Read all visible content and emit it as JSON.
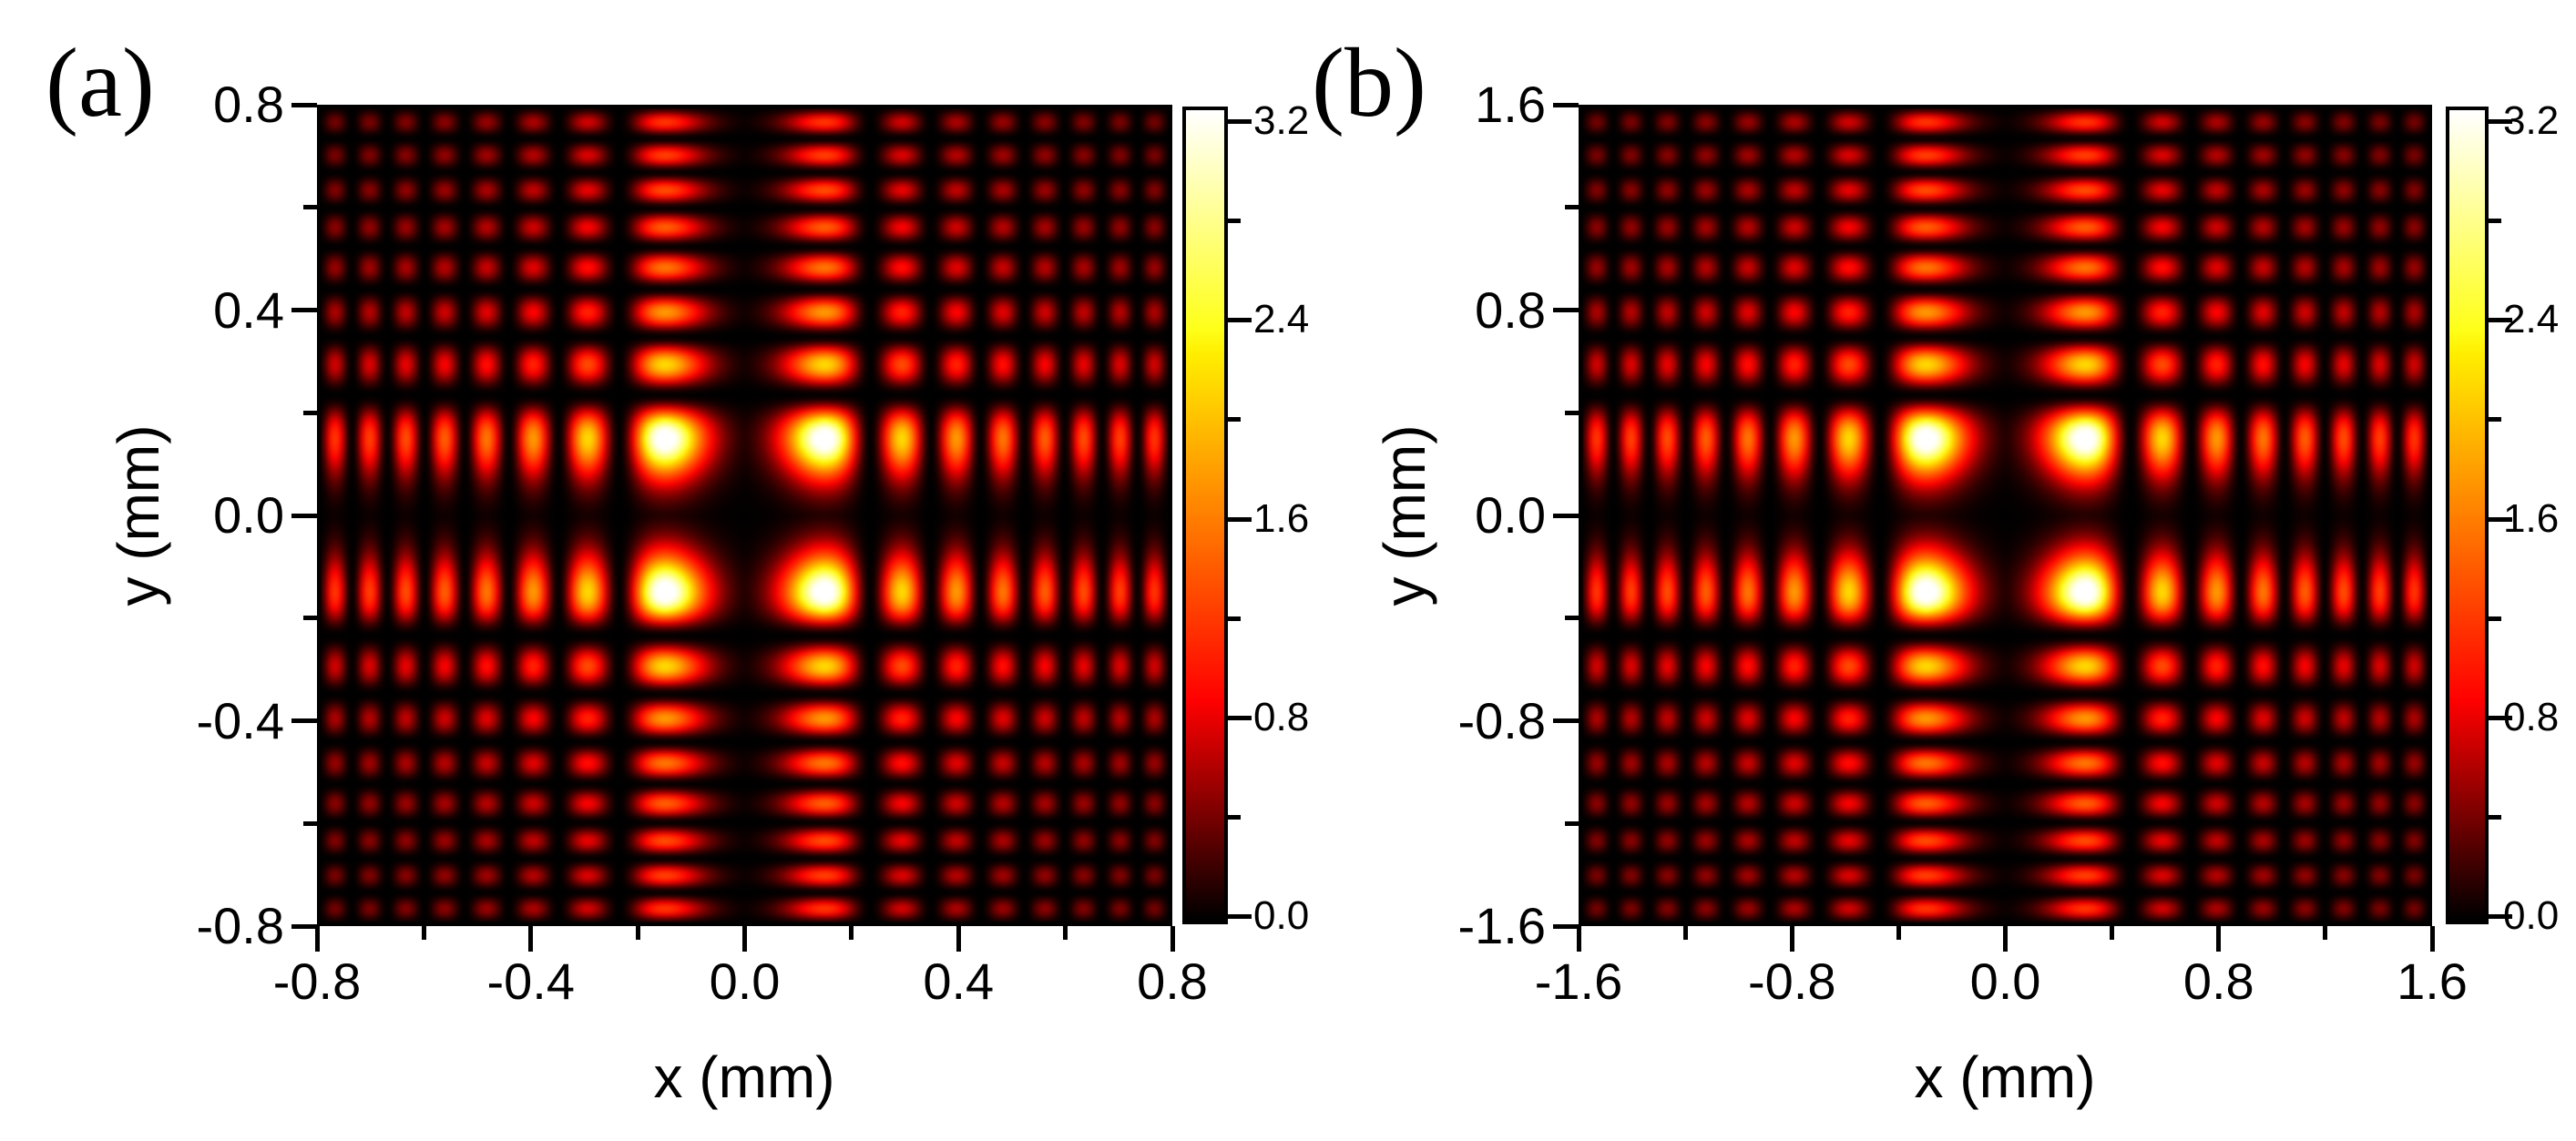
{
  "figure": {
    "background": "#ffffff",
    "axis_color": "#000000"
  },
  "panels": [
    {
      "id": "a",
      "label": "(a)",
      "x_title": "x (mm)",
      "y_title": "y (mm)",
      "x_tick_labels": [
        "-0.8",
        "-0.4",
        "0.0",
        "0.4",
        "0.8"
      ],
      "y_tick_labels": [
        "0.8",
        "0.4",
        "0.0",
        "-0.4",
        "-0.8"
      ],
      "colorbar_tick_labels": [
        "0.0",
        "0.8",
        "1.6",
        "2.4",
        "3.2"
      ]
    },
    {
      "id": "b",
      "label": "(b)",
      "x_title": "x (mm)",
      "y_title": "y (mm)",
      "x_tick_labels": [
        "-1.6",
        "-0.8",
        "0.0",
        "0.8",
        "1.6"
      ],
      "y_tick_labels": [
        "1.6",
        "0.8",
        "0.0",
        "-0.8",
        "-1.6"
      ],
      "colorbar_tick_labels": [
        "0.0",
        "0.8",
        "1.6",
        "2.4",
        "3.2"
      ]
    }
  ],
  "chart_data": [
    {
      "type": "heatmap",
      "panel": "a",
      "title": "",
      "xlabel": "x (mm)",
      "ylabel": "y (mm)",
      "x_range": [
        -0.8,
        0.8
      ],
      "y_range": [
        -0.8,
        0.8
      ],
      "x_ticks": [
        -0.8,
        -0.4,
        0.0,
        0.4,
        0.8
      ],
      "x_minor_ticks": [
        -0.6,
        -0.2,
        0.2,
        0.6
      ],
      "y_ticks": [
        -0.8,
        -0.4,
        0.0,
        0.4,
        0.8
      ],
      "y_minor_ticks": [
        -0.6,
        -0.2,
        0.2,
        0.6
      ],
      "value_range": [
        0.0,
        3.2
      ],
      "colorbar_ticks": [
        0.0,
        0.8,
        1.6,
        2.4,
        3.2
      ],
      "colorbar_minor_ticks": [
        0.4,
        1.2,
        2.0,
        2.8
      ],
      "first_lobe_position_mm": 0.14,
      "central_dark_cross": true,
      "model": {
        "kind": "separable-symmetric-airy",
        "formula": "I(x,y) = K * Ai((T0-|x|/L)/W)^2 * Ai((T0-|y|/L)/W)^2, clipped to value_range",
        "L_half_width_mm": 0.8,
        "T0": 0.105,
        "W": 0.082,
        "K": 42.5
      },
      "colormap": {
        "name": "hot-like",
        "r_end": 0.27,
        "g_start": 0.27,
        "g_end": 0.73,
        "b_start": 0.7,
        "b_end": 1.0,
        "stops": [
          {
            "v": 0.0,
            "color": "#000000"
          },
          {
            "v": 0.25,
            "color": "#ec0000"
          },
          {
            "v": 0.5,
            "color": "#ff8000"
          },
          {
            "v": 0.75,
            "color": "#ffff2a"
          },
          {
            "v": 1.0,
            "color": "#ffffff"
          }
        ]
      }
    },
    {
      "type": "heatmap",
      "panel": "b",
      "title": "",
      "xlabel": "x (mm)",
      "ylabel": "y (mm)",
      "x_range": [
        -1.6,
        1.6
      ],
      "y_range": [
        -1.6,
        1.6
      ],
      "x_ticks": [
        -1.6,
        -0.8,
        0.0,
        0.8,
        1.6
      ],
      "x_minor_ticks": [
        -1.2,
        -0.4,
        0.4,
        1.2
      ],
      "y_ticks": [
        -1.6,
        -0.8,
        0.0,
        0.8,
        1.6
      ],
      "y_minor_ticks": [
        -1.2,
        -0.4,
        0.4,
        1.2
      ],
      "value_range": [
        0.0,
        3.2
      ],
      "colorbar_ticks": [
        0.0,
        0.8,
        1.6,
        2.4,
        3.2
      ],
      "colorbar_minor_ticks": [
        0.4,
        1.2,
        2.0,
        2.8
      ],
      "first_lobe_position_mm": 0.28,
      "central_dark_cross": true,
      "model": {
        "kind": "separable-symmetric-airy",
        "formula": "I(x,y) = K * Ai((T0-|x|/L)/W)^2 * Ai((T0-|y|/L)/W)^2, clipped to value_range",
        "L_half_width_mm": 1.6,
        "T0": 0.105,
        "W": 0.082,
        "K": 42.5
      }
    }
  ]
}
